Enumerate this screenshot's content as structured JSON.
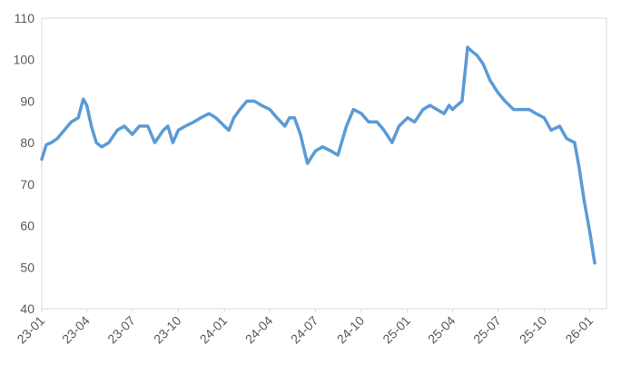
{
  "chart_data": {
    "type": "line",
    "title": "",
    "xlabel": "",
    "ylabel": "",
    "ylim": [
      40,
      110
    ],
    "y_ticks": [
      40,
      50,
      60,
      70,
      80,
      90,
      100,
      110
    ],
    "x_ticks": [
      "23-01",
      "23-04",
      "23-07",
      "23-10",
      "24-01",
      "24-04",
      "24-07",
      "24-10",
      "25-01",
      "25-04",
      "25-07",
      "25-10",
      "26-01"
    ],
    "grid": false,
    "legend": "none",
    "line_color": "#5b9bd5",
    "series": [
      {
        "x": [
          "2023-01-01",
          "2023-01-10",
          "2023-01-20",
          "2023-02-01",
          "2023-02-15",
          "2023-03-01",
          "2023-03-15",
          "2023-03-25",
          "2023-04-01",
          "2023-04-10",
          "2023-04-20",
          "2023-05-01",
          "2023-05-15",
          "2023-06-01",
          "2023-06-15",
          "2023-07-01",
          "2023-07-15",
          "2023-08-01",
          "2023-08-15",
          "2023-09-01",
          "2023-09-10",
          "2023-09-20",
          "2023-10-01",
          "2023-10-15",
          "2023-11-01",
          "2023-11-15",
          "2023-12-01",
          "2023-12-15",
          "2024-01-01",
          "2024-01-10",
          "2024-01-20",
          "2024-02-01",
          "2024-02-15",
          "2024-03-01",
          "2024-03-15",
          "2024-04-01",
          "2024-04-15",
          "2024-05-01",
          "2024-05-10",
          "2024-05-20",
          "2024-06-01",
          "2024-06-15",
          "2024-07-01",
          "2024-07-15",
          "2024-08-01",
          "2024-08-15",
          "2024-09-01",
          "2024-09-15",
          "2024-10-01",
          "2024-10-15",
          "2024-11-01",
          "2024-11-15",
          "2024-12-01",
          "2024-12-15",
          "2025-01-01",
          "2025-01-15",
          "2025-02-01",
          "2025-02-15",
          "2025-03-01",
          "2025-03-15",
          "2025-03-25",
          "2025-04-01",
          "2025-04-10",
          "2025-04-20",
          "2025-05-01",
          "2025-05-10",
          "2025-05-20",
          "2025-06-01",
          "2025-06-15",
          "2025-07-01",
          "2025-07-15",
          "2025-08-01",
          "2025-08-15",
          "2025-09-01",
          "2025-09-15",
          "2025-10-01",
          "2025-10-15",
          "2025-11-01",
          "2025-11-15",
          "2025-12-01",
          "2025-12-10",
          "2025-12-20",
          "2026-01-01",
          "2026-01-10"
        ],
        "y": [
          76,
          79.5,
          80,
          81,
          83,
          85,
          86,
          90.5,
          89,
          84,
          80,
          79,
          80,
          83,
          84,
          82,
          84,
          84,
          80,
          83,
          84,
          80,
          83,
          84,
          85,
          86,
          87,
          86,
          84,
          83,
          86,
          88,
          90,
          90,
          89,
          88,
          86,
          84,
          86,
          86,
          82,
          75,
          78,
          79,
          78,
          77,
          84,
          88,
          87,
          85,
          85,
          83,
          80,
          84,
          86,
          85,
          88,
          89,
          88,
          87,
          89,
          88,
          89,
          90,
          103,
          102,
          101,
          99,
          95,
          92,
          90,
          88,
          88,
          88,
          87,
          86,
          83,
          84,
          81,
          80,
          74,
          66,
          58,
          51
        ]
      }
    ]
  }
}
